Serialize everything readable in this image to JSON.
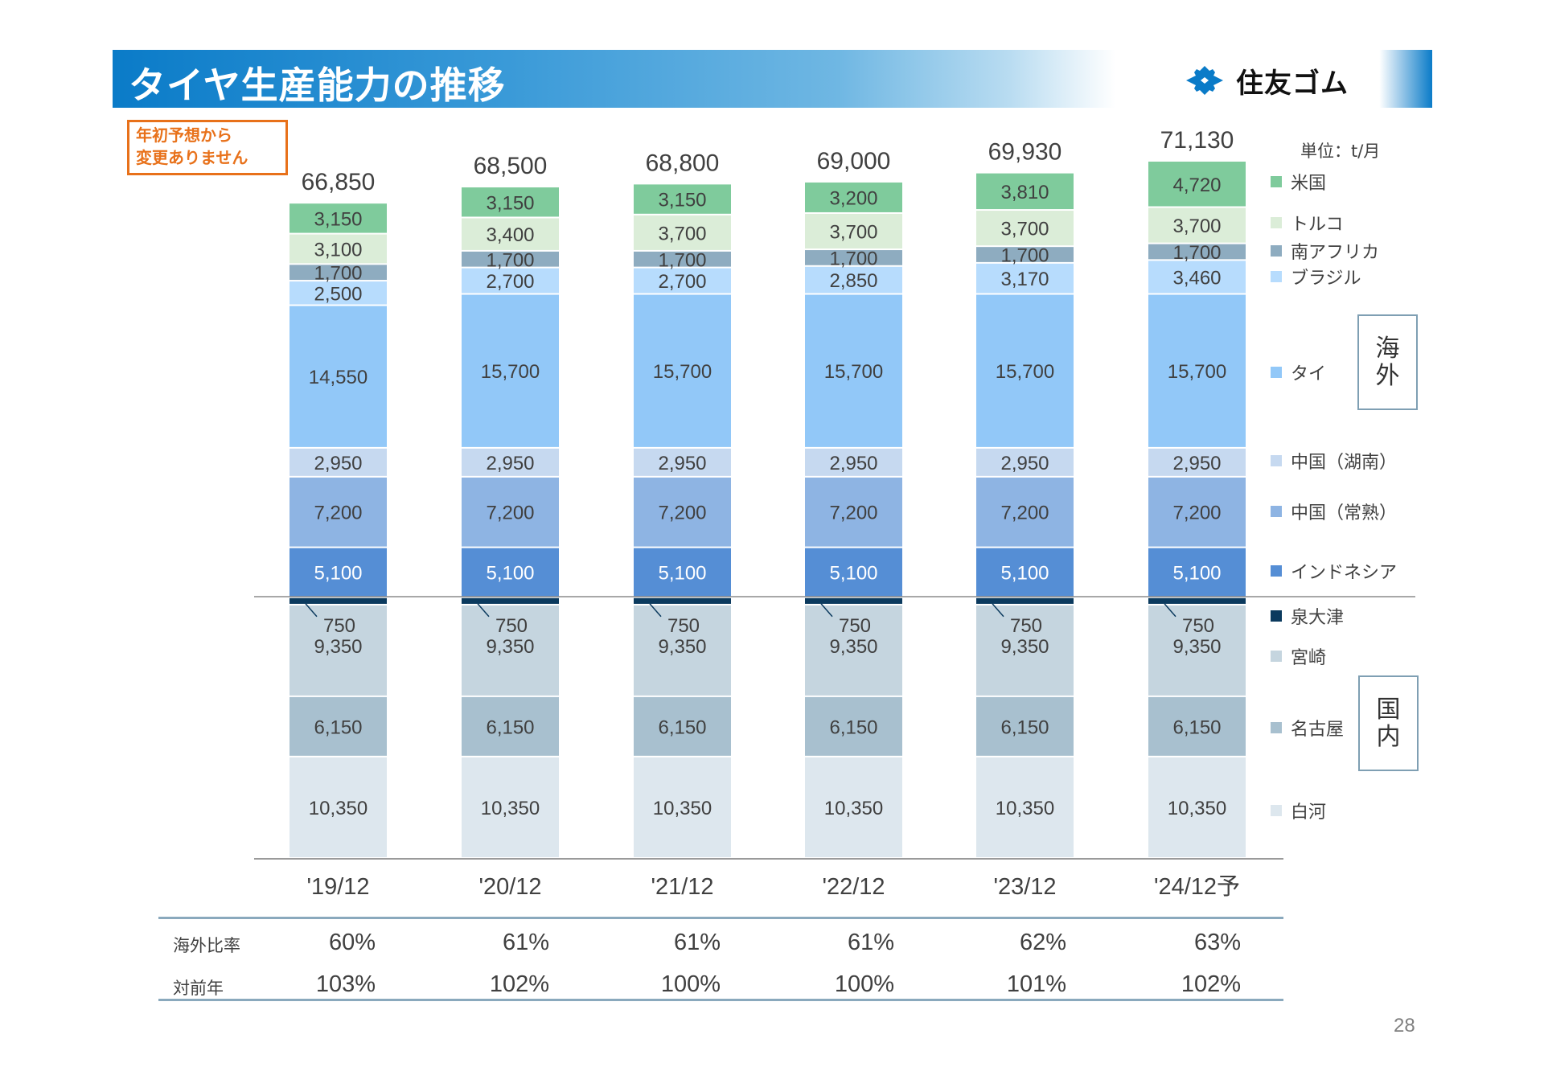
{
  "header": {
    "title": "タイヤ生産能力の推移",
    "logo_text": "住友ゴム",
    "logo_icon": "sumitomo-diamond-mark",
    "brand_color": "#0a7bc8"
  },
  "note": {
    "line1": "年初予想から",
    "line2": "変更ありません",
    "color": "#e8711a"
  },
  "unit_label": "単位：t/月",
  "group_labels": {
    "overseas": [
      "海",
      "外"
    ],
    "domestic": [
      "国",
      "内"
    ]
  },
  "chart_data": {
    "type": "bar",
    "stacked": true,
    "title": "タイヤ生産能力の推移",
    "xlabel": "",
    "ylabel": "",
    "unit": "t/月",
    "categories": [
      "'19/12",
      "'20/12",
      "'21/12",
      "'22/12",
      "'23/12",
      "'24/12予"
    ],
    "totals": [
      "66,850",
      "68,500",
      "68,800",
      "69,000",
      "69,930",
      "71,130"
    ],
    "total_values": [
      66850,
      68500,
      68800,
      69000,
      69930,
      71130
    ],
    "ylim": [
      0,
      71130
    ],
    "grid": false,
    "legend_position": "right",
    "divider_after_series": "泉大津",
    "series": [
      {
        "name": "白河",
        "group": "国内",
        "color": "#dde7ee",
        "label_color": "#404040",
        "values": [
          10350,
          10350,
          10350,
          10350,
          10350,
          10350
        ]
      },
      {
        "name": "名古屋",
        "group": "国内",
        "color": "#a8c0cf",
        "label_color": "#404040",
        "values": [
          6150,
          6150,
          6150,
          6150,
          6150,
          6150
        ]
      },
      {
        "name": "宮崎",
        "group": "国内",
        "color": "#c5d5df",
        "label_color": "#404040",
        "values": [
          9350,
          9350,
          9350,
          9350,
          9350,
          9350
        ]
      },
      {
        "name": "泉大津",
        "group": "国内",
        "color": "#0b3a5e",
        "label_color": "#404040",
        "values": [
          750,
          750,
          750,
          750,
          750,
          750
        ]
      },
      {
        "name": "インドネシア",
        "group": "海外",
        "color": "#558ed5",
        "label_color": "#ffffff",
        "values": [
          5100,
          5100,
          5100,
          5100,
          5100,
          5100
        ]
      },
      {
        "name": "中国（常熟）",
        "group": "海外",
        "color": "#8eb4e3",
        "label_color": "#404040",
        "values": [
          7200,
          7200,
          7200,
          7200,
          7200,
          7200
        ]
      },
      {
        "name": "中国（湖南）",
        "group": "海外",
        "color": "#c6d9f0",
        "label_color": "#404040",
        "values": [
          2950,
          2950,
          2950,
          2950,
          2950,
          2950
        ]
      },
      {
        "name": "タイ",
        "group": "海外",
        "color": "#92c8f8",
        "label_color": "#404040",
        "values": [
          14550,
          15700,
          15700,
          15700,
          15700,
          15700
        ]
      },
      {
        "name": "ブラジル",
        "group": "海外",
        "color": "#b7dcfd",
        "label_color": "#404040",
        "values": [
          2500,
          2700,
          2700,
          2850,
          3170,
          3460
        ]
      },
      {
        "name": "南アフリカ",
        "group": "海外",
        "color": "#8eacc0",
        "label_color": "#404040",
        "values": [
          1700,
          1700,
          1700,
          1700,
          1700,
          1700
        ]
      },
      {
        "name": "トルコ",
        "group": "海外",
        "color": "#dbedd8",
        "label_color": "#404040",
        "values": [
          3100,
          3400,
          3700,
          3700,
          3700,
          3700
        ]
      },
      {
        "name": "米国",
        "group": "海外",
        "color": "#7fcb9c",
        "label_color": "#404040",
        "values": [
          3150,
          3150,
          3150,
          3200,
          3810,
          4720
        ]
      }
    ]
  },
  "legend": [
    {
      "name": "米国",
      "color": "#7fcb9c"
    },
    {
      "name": "トルコ",
      "color": "#dbedd8"
    },
    {
      "name": "南アフリカ",
      "color": "#8eacc0"
    },
    {
      "name": "ブラジル",
      "color": "#b7dcfd"
    },
    {
      "name": "タイ",
      "color": "#92c8f8"
    },
    {
      "name": "中国（湖南）",
      "color": "#c6d9f0"
    },
    {
      "name": "中国（常熟）",
      "color": "#8eb4e3"
    },
    {
      "name": "インドネシア",
      "color": "#558ed5"
    },
    {
      "name": "泉大津",
      "color": "#0b3a5e"
    },
    {
      "name": "宮崎",
      "color": "#c5d5df"
    },
    {
      "name": "名古屋",
      "color": "#a8c0cf"
    },
    {
      "name": "白河",
      "color": "#dde7ee"
    }
  ],
  "table": {
    "rows": [
      {
        "label": "海外比率",
        "values": [
          "60%",
          "61%",
          "61%",
          "61%",
          "62%",
          "63%"
        ]
      },
      {
        "label": "対前年",
        "values": [
          "103%",
          "102%",
          "100%",
          "100%",
          "101%",
          "102%"
        ]
      }
    ]
  },
  "page_number": "28"
}
